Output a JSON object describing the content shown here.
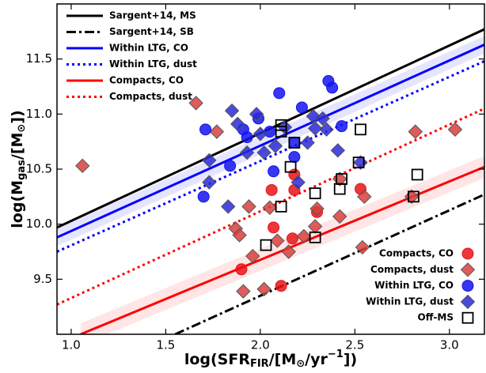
{
  "chart_data": {
    "type": "scatter",
    "xlabel_parts": [
      "log(SFR",
      "FIR",
      "/[M",
      "⊙",
      "/yr",
      "−1",
      "])"
    ],
    "ylabel_parts": [
      "log(M",
      "gas",
      "/[M",
      "⊙",
      "])"
    ],
    "xlim": [
      0.925,
      3.185
    ],
    "ylim": [
      9.0,
      12.0
    ],
    "xticks": [
      {
        "value": 1,
        "label": "1.0"
      },
      1.5,
      {
        "value": 2,
        "label": "2.0"
      },
      2.5,
      {
        "value": 3,
        "label": "3.0"
      }
    ],
    "yticks": [
      9.5,
      {
        "value": 10,
        "label": "10.0"
      },
      10.5,
      {
        "value": 11,
        "label": "11.0"
      },
      11.5
    ],
    "series": [
      {
        "name": "Sargent+14, MS",
        "color": "#000000",
        "style": "solid",
        "legend": "upper left",
        "x": [
          0.925,
          3.185
        ],
        "values": [
          9.97,
          11.77
        ]
      },
      {
        "name": "Sargent+14, SB",
        "color": "#000000",
        "style": "dashdot",
        "legend": "upper left",
        "x": [
          1.55,
          3.185
        ],
        "values": [
          9.0,
          10.27
        ]
      },
      {
        "name": "Within LTG, CO",
        "color": "#0000ff",
        "style": "solid",
        "band": 0.08,
        "legend": "upper left",
        "x": [
          0.925,
          3.185
        ],
        "values": [
          9.88,
          11.63
        ]
      },
      {
        "name": "Within LTG, dust",
        "color": "#0000ff",
        "style": "dotted",
        "legend": "upper left",
        "x": [
          0.925,
          3.185
        ],
        "values": [
          9.75,
          11.48
        ]
      },
      {
        "name": "Compacts, CO",
        "color": "#ff0000",
        "style": "solid",
        "band": 0.1,
        "legend": "upper left",
        "x": [
          1.05,
          3.185
        ],
        "values": [
          9.0,
          10.52
        ]
      },
      {
        "name": "Compacts, dust",
        "color": "#ff0000",
        "style": "dotted",
        "legend": "upper left",
        "x": [
          0.925,
          3.185
        ],
        "values": [
          9.27,
          11.05
        ]
      },
      {
        "name": "Compacts, CO",
        "color": "#e8141a",
        "marker": "circle",
        "legend": "lower right",
        "x": [
          1.9,
          2.11,
          2.06,
          2.18,
          2.18,
          2.07,
          2.3,
          2.53,
          2.17
        ],
        "values": [
          9.59,
          9.44,
          10.31,
          10.31,
          10.45,
          9.97,
          10.11,
          10.32,
          9.87
        ]
      },
      {
        "name": "Compacts, dust",
        "color": "#d8403c",
        "marker": "diamond",
        "legend": "lower right",
        "x": [
          1.06,
          1.66,
          1.77,
          1.87,
          1.89,
          1.94,
          1.96,
          2.02,
          1.91,
          2.05,
          2.09,
          2.15,
          2.23,
          2.3,
          2.42,
          2.54,
          2.29,
          2.55,
          2.8,
          2.82,
          3.03,
          2.42
        ],
        "values": [
          10.53,
          11.1,
          10.84,
          9.96,
          9.9,
          10.16,
          9.71,
          9.41,
          9.39,
          10.15,
          9.85,
          9.75,
          9.89,
          10.14,
          10.07,
          9.79,
          9.98,
          10.25,
          10.25,
          10.84,
          10.86,
          10.41
        ]
      },
      {
        "name": "Within LTG, CO",
        "color": "#1414f0",
        "marker": "circle",
        "legend": "lower right",
        "x": [
          1.71,
          1.7,
          1.84,
          1.91,
          1.93,
          1.99,
          2.1,
          2.22,
          2.36,
          2.38,
          2.43,
          2.18,
          2.05,
          2.07,
          2.18
        ],
        "values": [
          10.86,
          10.25,
          10.53,
          10.86,
          10.79,
          10.96,
          11.19,
          11.06,
          11.3,
          11.24,
          10.89,
          10.74,
          10.84,
          10.48,
          10.61
        ]
      },
      {
        "name": "Within LTG, dust",
        "color": "#2a2ad8",
        "marker": "diamond",
        "legend": "lower right",
        "x": [
          1.85,
          1.88,
          1.73,
          1.83,
          1.93,
          2.02,
          1.98,
          2.0,
          2.08,
          2.13,
          2.25,
          2.29,
          2.33,
          2.35,
          2.41,
          2.53,
          2.28,
          2.2,
          1.73
        ],
        "values": [
          11.03,
          10.91,
          10.38,
          10.16,
          10.65,
          10.65,
          11.0,
          10.82,
          10.71,
          10.88,
          10.74,
          10.87,
          10.96,
          10.86,
          10.67,
          10.56,
          10.98,
          10.38,
          10.58
        ]
      },
      {
        "name": "Off-MS",
        "color": "#000000",
        "marker": "square",
        "legend": "lower right",
        "x": [
          2.11,
          2.11,
          2.18,
          2.29,
          2.29,
          2.42,
          2.43,
          2.52,
          2.53,
          2.81,
          2.83,
          2.03,
          2.11,
          2.16
        ],
        "values": [
          10.84,
          10.9,
          10.74,
          10.28,
          9.88,
          10.32,
          10.41,
          10.56,
          10.86,
          10.25,
          10.45,
          9.81,
          10.16,
          10.52
        ]
      }
    ]
  }
}
